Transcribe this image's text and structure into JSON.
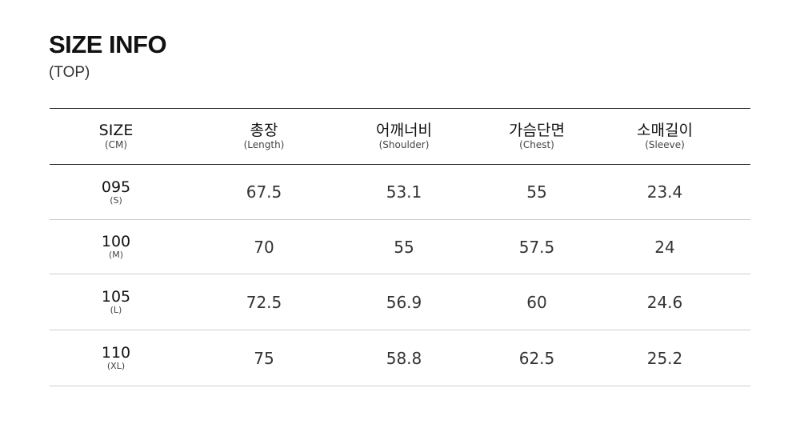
{
  "title": "SIZE INFO",
  "subtitle": "(TOP)",
  "headers": [
    {
      "main": "SIZE",
      "sub": "(CM)"
    },
    {
      "main": "총장",
      "sub": "(Length)"
    },
    {
      "main": "어깨너비",
      "sub": "(Shoulder)"
    },
    {
      "main": "가슴단면",
      "sub": "(Chest)"
    },
    {
      "main": "소매길이",
      "sub": "(Sleeve)"
    }
  ],
  "rows": [
    {
      "size": "095",
      "label": "(S)",
      "values": [
        "67.5",
        "53.1",
        "55",
        "23.4"
      ]
    },
    {
      "size": "100",
      "label": "(M)",
      "values": [
        "70",
        "55",
        "57.5",
        "24"
      ]
    },
    {
      "size": "105",
      "label": "(L)",
      "values": [
        "72.5",
        "56.9",
        "60",
        "24.6"
      ]
    },
    {
      "size": "110",
      "label": "(XL)",
      "values": [
        "75",
        "58.8",
        "62.5",
        "25.2"
      ]
    }
  ]
}
